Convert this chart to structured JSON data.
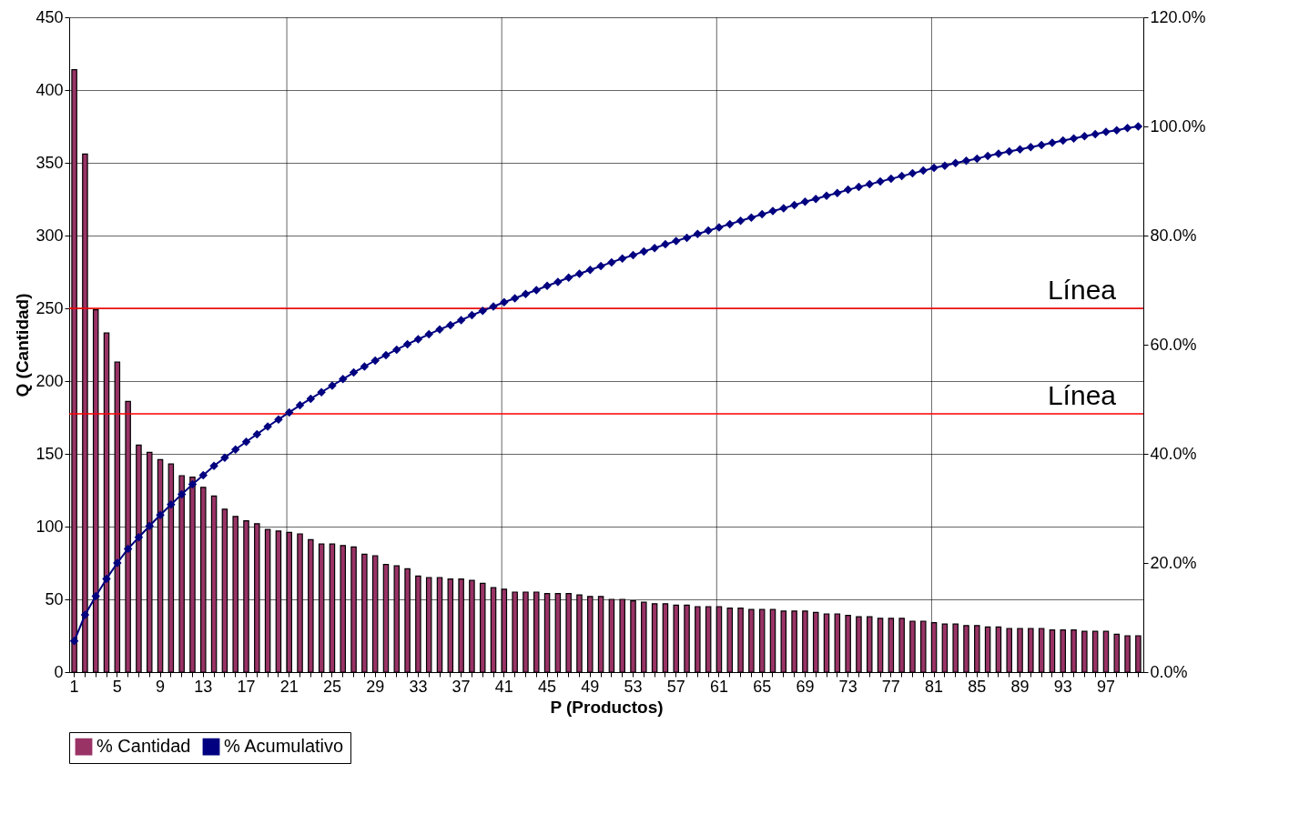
{
  "chart_data": {
    "type": "bar",
    "xlabel": "P (Productos)",
    "ylabel": "Q (Cantidad)",
    "categories": [
      "1",
      null,
      null,
      null,
      "5",
      null,
      null,
      null,
      "9",
      null,
      null,
      null,
      "13",
      null,
      null,
      null,
      "17",
      null,
      null,
      null,
      "21",
      null,
      null,
      null,
      "25",
      null,
      null,
      null,
      "29",
      null,
      null,
      null,
      "33",
      null,
      null,
      null,
      "37",
      null,
      null,
      null,
      "41",
      null,
      null,
      null,
      "45",
      null,
      null,
      null,
      "49",
      null,
      null,
      null,
      "53",
      null,
      null,
      null,
      "57",
      null,
      null,
      null,
      "61",
      null,
      null,
      null,
      "65",
      null,
      null,
      null,
      "69",
      null,
      null,
      null,
      "73",
      null,
      null,
      null,
      "77",
      null,
      null,
      null,
      "81",
      null,
      null,
      null,
      "85",
      null,
      null,
      null,
      "89",
      null,
      null,
      null,
      "93",
      null,
      null,
      null,
      "97",
      null,
      null,
      null
    ],
    "series": [
      {
        "name": "% Cantidad",
        "color": "#993366",
        "values": [
          414,
          356,
          249,
          233,
          213,
          186,
          156,
          151,
          146,
          143,
          135,
          134,
          127,
          121,
          112,
          107,
          104,
          102,
          98,
          97,
          96,
          95,
          91,
          88,
          88,
          87,
          86,
          81,
          80,
          74,
          73,
          71,
          66,
          65,
          65,
          64,
          64,
          63,
          61,
          58,
          57,
          55,
          55,
          55,
          54,
          54,
          54,
          53,
          52,
          52,
          50,
          50,
          49,
          48,
          47,
          47,
          46,
          46,
          45,
          45,
          45,
          44,
          44,
          43,
          43,
          43,
          42,
          42,
          42,
          41,
          40,
          40,
          39,
          38,
          38,
          37,
          37,
          37,
          35,
          35,
          34,
          33,
          33,
          32,
          32,
          31,
          31,
          30,
          30,
          30,
          30,
          29,
          29,
          29,
          28,
          28,
          28,
          26,
          25,
          25
        ]
      },
      {
        "name": "% Acumulativo",
        "type": "line",
        "axis": "y2",
        "color": "#000080",
        "marker": "diamond",
        "values": [
          5.7,
          10.5,
          13.9,
          17.1,
          20.0,
          22.6,
          24.7,
          26.8,
          28.8,
          30.7,
          32.6,
          34.4,
          36.1,
          37.8,
          39.3,
          40.8,
          42.2,
          43.6,
          45.0,
          46.3,
          47.6,
          48.9,
          50.1,
          51.3,
          52.5,
          53.7,
          54.9,
          56.0,
          57.1,
          58.1,
          59.1,
          60.1,
          61.0,
          61.9,
          62.8,
          63.6,
          64.5,
          65.4,
          66.2,
          67.0,
          67.8,
          68.5,
          69.3,
          70.0,
          70.8,
          71.5,
          72.3,
          73.0,
          73.7,
          74.4,
          75.1,
          75.8,
          76.4,
          77.1,
          77.7,
          78.4,
          79.0,
          79.6,
          80.3,
          80.9,
          81.5,
          82.1,
          82.7,
          83.3,
          83.9,
          84.5,
          85.0,
          85.6,
          86.2,
          86.7,
          87.3,
          87.8,
          88.4,
          88.9,
          89.4,
          89.9,
          90.4,
          90.9,
          91.4,
          91.9,
          92.4,
          92.8,
          93.3,
          93.7,
          94.1,
          94.6,
          95.0,
          95.4,
          95.8,
          96.2,
          96.6,
          97.0,
          97.4,
          97.8,
          98.2,
          98.6,
          99.0,
          99.3,
          99.7,
          100.0
        ]
      }
    ],
    "ylim": [
      0,
      450
    ],
    "yticks": [
      0,
      50,
      100,
      150,
      200,
      250,
      300,
      350,
      400,
      450
    ],
    "y2lim": [
      0,
      120
    ],
    "y2ticks": [
      {
        "value": 0,
        "label": "0.0%"
      },
      {
        "value": 20,
        "label": "20.0%"
      },
      {
        "value": 40,
        "label": "40.0%"
      },
      {
        "value": 60,
        "label": "60.0%"
      },
      {
        "value": 80,
        "label": "80.0%"
      },
      {
        "value": 100,
        "label": "100.0%"
      },
      {
        "value": 120,
        "label": "120.0%"
      }
    ],
    "ref_lines": [
      {
        "axis": "y",
        "value": 250,
        "label": "Línea",
        "color": "#ff0000"
      },
      {
        "axis": "y",
        "value": 177.5,
        "label": "Línea",
        "color": "#ff0000"
      }
    ],
    "grid": true,
    "legend": "bottom"
  }
}
